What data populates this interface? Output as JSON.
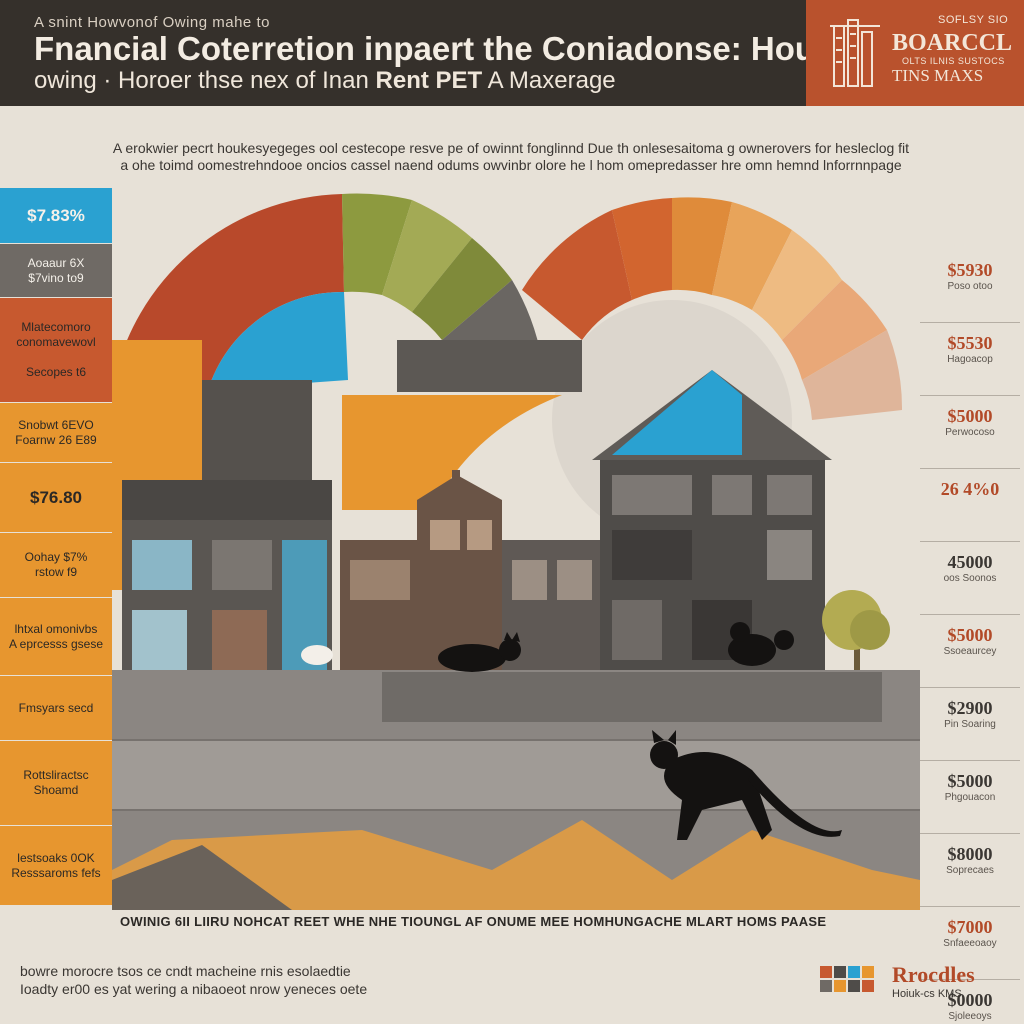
{
  "header": {
    "pre_title": "A snint Howvonof Owing mahe to",
    "title": "Fnancial Coterretion inpaert the Coniadonse: Hounes",
    "subtitle_start": "owing · Horoer thse nex of Inan ",
    "subtitle_bold": "Rent PET",
    "subtitle_end": " A Maxerage"
  },
  "badge": {
    "small": "SOFLSY SIO",
    "big": "BOARCCL",
    "line": "OLTS ILNIS SUSTOCS",
    "sub": "TINS MAXS"
  },
  "intro": {
    "line1": "A erokwier pecrt houkesyegeges ool cestecope resve pe of owinnt fonglinnd Due th onlesesaitoma g ownerovers for hesleclog fit",
    "line2": "a ohe toimd oomestrehndooe oncios cassel naend odums owvinbr olore he l hom omepredasser hre omn hemnd lnforrnnpage"
  },
  "left_bar": [
    {
      "text": "$7.83%",
      "color": "#2aa1d1",
      "height": 56,
      "kind": "value"
    },
    {
      "text": "Aoaaur 6X\n$7vino to9",
      "color": "#6f6a65",
      "height": 54,
      "kind": "label"
    },
    {
      "text": "Mlatecomoro\nconomavewovl\n\nSecopes t6",
      "color": "#c7592f",
      "height": 105,
      "kind": "label"
    },
    {
      "text": "Snobwt 6EVO\nFoarnw 26 E89",
      "color": "#e7962f",
      "height": 60,
      "kind": "label"
    },
    {
      "text": "$76.80",
      "color": "#e7962f",
      "height": 70,
      "kind": "value"
    },
    {
      "text": "Oohay $7%\nrstow f9",
      "color": "#e7962f",
      "height": 65,
      "kind": "label"
    },
    {
      "text": "lhtxal omonivbs\nA eprcesss gsese",
      "color": "#e7962f",
      "height": 78,
      "kind": "label"
    },
    {
      "text": "Fmsyars secd",
      "color": "#e7962f",
      "height": 65,
      "kind": "label"
    },
    {
      "text": "Rottsliractsc\nShoamd",
      "color": "#e7962f",
      "height": 85,
      "kind": "label"
    },
    {
      "text": "lestsoaks 0OK\nResssaroms fefs",
      "color": "#e7962f",
      "height": 80,
      "kind": "label"
    }
  ],
  "right_col": [
    {
      "value": "$5930",
      "label": "Poso otoo",
      "dark": false
    },
    {
      "value": "$5530",
      "label": "Hagoacop",
      "dark": false
    },
    {
      "value": "$5000",
      "label": "Perwocoso",
      "dark": false
    },
    {
      "value": "26 4%0",
      "label": "",
      "dark": false
    },
    {
      "value": "45000",
      "label": "oos Soonos",
      "dark": true
    },
    {
      "value": "$5000",
      "label": "Ssoeaurcey",
      "dark": false
    },
    {
      "value": "$2900",
      "label": "Pin Soaring",
      "dark": true
    },
    {
      "value": "$5000",
      "label": "Phgouacon",
      "dark": true
    },
    {
      "value": "$8000",
      "label": "Soprecaes",
      "dark": true
    },
    {
      "value": "$7000",
      "label": "Snfaeeoaoy",
      "dark": false
    },
    {
      "value": "$0000",
      "label": "Sjoleeoys",
      "dark": true
    }
  ],
  "footer": {
    "caption": "OWINIG 6II LIIRU NOHCAT REET WHE NHE TIOUNGL AF ONUME MEE HOMHUNGACHE MLART HOMS PAASE",
    "text_line1": "bowre morocre tsos ce cndt macheine rnis esolaedtie",
    "text_line2": "Ioadty er00 es yat wering a nibaoeot nrow yeneces oete",
    "brand": "Rrocdles",
    "brand_sub": "Hoiuk-cs KMS"
  },
  "colors": {
    "header_bg": "#35302b",
    "badge_bg": "#b9522d",
    "accent_orange": "#e7962f",
    "accent_rust": "#c7592f",
    "accent_blue": "#2aa1d1",
    "accent_olive": "#8d9a3f"
  },
  "icons": [
    "building-logo-icon",
    "cat-silhouette-icon",
    "tree-icon",
    "house-icon"
  ]
}
